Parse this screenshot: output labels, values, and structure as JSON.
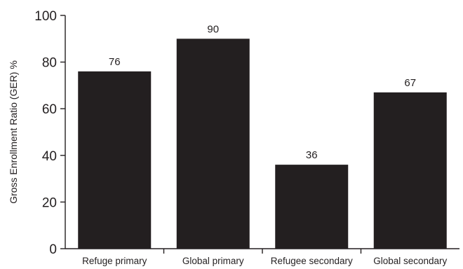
{
  "chart_data": {
    "type": "bar",
    "categories": [
      "Refuge primary",
      "Global primary",
      "Refugee secondary",
      "Global secondary"
    ],
    "values": [
      76,
      90,
      36,
      67
    ],
    "data_labels": [
      "76",
      "90",
      "36",
      "67"
    ],
    "title": "",
    "xlabel": "",
    "ylabel": "Gross Enrollment Ratio (GER) %",
    "ylim": [
      0,
      100
    ],
    "yticks": [
      0,
      20,
      40,
      60,
      80,
      100
    ],
    "grid": false,
    "bar_color": "#231f20"
  }
}
